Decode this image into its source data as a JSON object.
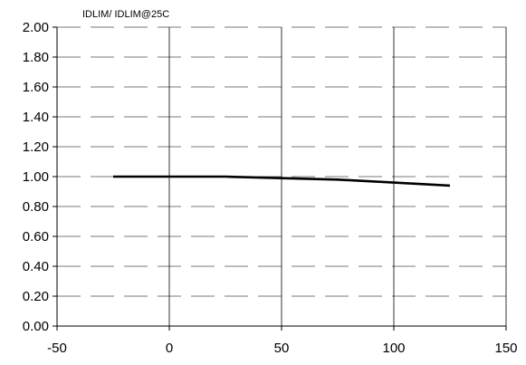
{
  "chart_data": {
    "type": "line",
    "title": "IDLIM/ IDLIM@25C",
    "xlabel": "",
    "ylabel": "",
    "xlim": [
      -50,
      150
    ],
    "ylim": [
      0,
      2
    ],
    "x_ticks": [
      -50,
      0,
      50,
      100,
      150
    ],
    "y_ticks": [
      0.0,
      0.2,
      0.4,
      0.6,
      0.8,
      1.0,
      1.2,
      1.4,
      1.6,
      1.8,
      2.0
    ],
    "x_tick_labels": [
      "-50",
      "0",
      "50",
      "100",
      "150"
    ],
    "y_tick_labels": [
      "0.00",
      "0.20",
      "0.40",
      "0.60",
      "0.80",
      "1.00",
      "1.20",
      "1.40",
      "1.60",
      "1.80",
      "2.00"
    ],
    "x_grid": "solid",
    "y_grid": "dashed",
    "legend": "none",
    "series": [
      {
        "color": "#000000",
        "x": [
          -25,
          0,
          25,
          50,
          75,
          100,
          125
        ],
        "y": [
          1.0,
          1.0,
          1.0,
          0.99,
          0.98,
          0.96,
          0.94
        ]
      }
    ]
  }
}
